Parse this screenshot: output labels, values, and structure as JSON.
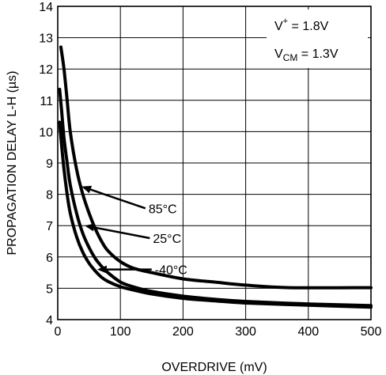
{
  "chart_data": {
    "type": "line",
    "title": "",
    "xlabel": "OVERDRIVE (mV)",
    "ylabel": "PROPAGATION DELAY L-H (µs)",
    "xlim": [
      0,
      500
    ],
    "ylim": [
      4,
      14
    ],
    "xticks": [
      0,
      100,
      200,
      300,
      400,
      500
    ],
    "yticks": [
      4,
      5,
      6,
      7,
      8,
      9,
      10,
      11,
      12,
      13,
      14
    ],
    "x_tick_labels": [
      "0",
      "100",
      "200",
      "300",
      "400",
      "500"
    ],
    "y_tick_labels": [
      "4",
      "5",
      "6",
      "7",
      "8",
      "9",
      "10",
      "11",
      "12",
      "13",
      "14"
    ],
    "grid": true,
    "conditions": {
      "supply": {
        "prefix": "V",
        "sup": "+",
        "value": " = 1.8V"
      },
      "vcm": {
        "prefix": "V",
        "sub": "CM",
        "value": " = 1.3V"
      }
    },
    "series": [
      {
        "name": "85°C",
        "x": [
          5,
          10,
          15,
          20,
          30,
          40,
          50,
          60,
          70,
          80,
          100,
          120,
          150,
          200,
          250,
          300,
          370,
          500
        ],
        "y": [
          12.7,
          12.0,
          11.0,
          10.0,
          8.8,
          8.0,
          7.4,
          6.9,
          6.5,
          6.2,
          5.85,
          5.65,
          5.5,
          5.3,
          5.2,
          5.1,
          5.02,
          5.02
        ]
      },
      {
        "name": "25°C",
        "x": [
          3,
          6,
          10,
          15,
          20,
          30,
          40,
          50,
          60,
          70,
          80,
          100,
          120,
          150,
          200,
          250,
          300,
          400,
          500
        ],
        "y": [
          11.35,
          10.7,
          9.8,
          9.0,
          8.3,
          7.4,
          6.75,
          6.3,
          5.95,
          5.7,
          5.5,
          5.2,
          5.05,
          4.9,
          4.75,
          4.65,
          4.58,
          4.5,
          4.45
        ]
      },
      {
        "name": "-40°C",
        "x": [
          3,
          6,
          10,
          15,
          20,
          30,
          40,
          50,
          60,
          70,
          80,
          100,
          120,
          150,
          200,
          250,
          300,
          400,
          500
        ],
        "y": [
          10.3,
          9.6,
          8.8,
          8.0,
          7.4,
          6.65,
          6.15,
          5.8,
          5.55,
          5.35,
          5.22,
          5.05,
          4.95,
          4.82,
          4.68,
          4.6,
          4.53,
          4.46,
          4.4
        ]
      }
    ],
    "annotations": [
      {
        "label": "85°C",
        "series": "85°C",
        "text_x": 145,
        "text_y": 7.4,
        "arrow_to_x": 38,
        "arrow_to_y": 8.25
      },
      {
        "label": "25°C",
        "series": "25°C",
        "text_x": 152,
        "text_y": 6.45,
        "arrow_to_x": 43,
        "arrow_to_y": 7.0
      },
      {
        "label": "-40°C",
        "series": "-40°C",
        "text_x": 155,
        "text_y": 5.45,
        "arrow_to_x": 63,
        "arrow_to_y": 5.6
      }
    ]
  }
}
